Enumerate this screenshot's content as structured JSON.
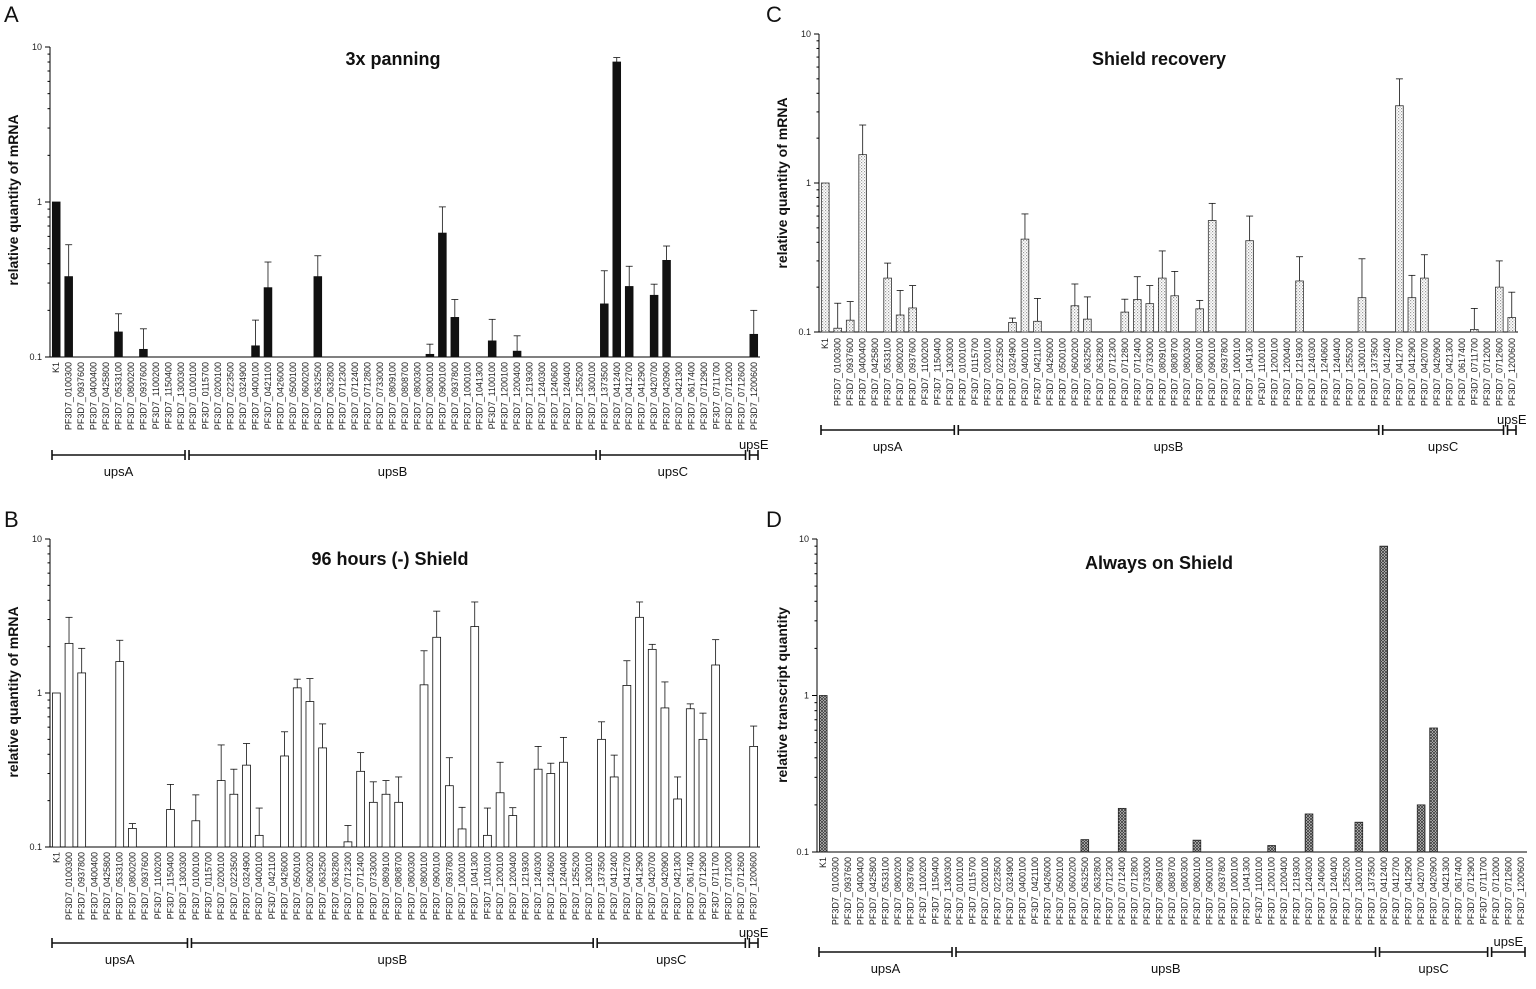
{
  "patterns": {
    "A": "solid-black",
    "B": "white",
    "C": "light-dots",
    "D": "dense-crosshatch"
  },
  "chart_data": [
    {
      "panel": "A",
      "type": "bar",
      "title": "3x panning",
      "ylabel": "relative quantity of mRNA",
      "xlabel": "",
      "yscale": "log",
      "ylim": [
        0.1,
        10
      ],
      "ytick_labels": [
        "0.1",
        "1",
        "10"
      ],
      "grid": false,
      "categories": [
        "K1",
        "PF3D7_0100300",
        "PF3D7_0937600",
        "PF3D7_0400400",
        "PF3D7_0425800",
        "PF3D7_0533100",
        "PF3D7_0800200",
        "PF3D7_0937600",
        "PF3D7_1100200",
        "PF3D7_1150400",
        "PF3D7_1300300",
        "PF3D7_0100100",
        "PF3D7_0115700",
        "PF3D7_0200100",
        "PF3D7_0223500",
        "PF3D7_0324900",
        "PF3D7_0400100",
        "PF3D7_0421100",
        "PF3D7_0426000",
        "PF3D7_0500100",
        "PF3D7_0600200",
        "PF3D7_0632500",
        "PF3D7_0632800",
        "PF3D7_0712300",
        "PF3D7_0712400",
        "PF3D7_0712800",
        "PF3D7_0733000",
        "PF3D7_0809100",
        "PF3D7_0808700",
        "PF3D7_0800300",
        "PF3D7_0800100",
        "PF3D7_0900100",
        "PF3D7_0937800",
        "PF3D7_1000100",
        "PF3D7_1041300",
        "PF3D7_1100100",
        "PF3D7_1200100",
        "PF3D7_1200400",
        "PF3D7_1219300",
        "PF3D7_1240300",
        "PF3D7_1240600",
        "PF3D7_1240400",
        "PF3D7_1255200",
        "PF3D7_1300100",
        "PF3D7_1373500",
        "PF3D7_0412400",
        "PF3D7_0412700",
        "PF3D7_0412900",
        "PF3D7_0420700",
        "PF3D7_0420900",
        "PF3D7_0421300",
        "PF3D7_0617400",
        "PF3D7_0712900",
        "PF3D7_0711700",
        "PF3D7_0712000",
        "PF3D7_0712600",
        "PF3D7_1200600"
      ],
      "values": [
        1.0,
        0.33,
        0,
        0,
        0,
        0.145,
        0,
        0.112,
        0,
        0,
        0,
        0,
        0,
        0,
        0,
        0,
        0.118,
        0.28,
        0,
        0,
        0,
        0.33,
        0,
        0,
        0,
        0,
        0,
        0,
        0,
        0,
        0.104,
        0.63,
        0.18,
        0,
        0,
        0.127,
        0,
        0.109,
        0,
        0,
        0,
        0,
        0,
        0,
        0.22,
        8.0,
        0.285,
        0,
        0.25,
        0.42,
        0,
        0,
        0,
        0,
        0,
        0,
        0.14
      ],
      "errors": [
        0,
        0.2,
        0,
        0,
        0,
        0.045,
        0,
        0.04,
        0,
        0,
        0,
        0,
        0,
        0,
        0,
        0,
        0.055,
        0.13,
        0,
        0,
        0,
        0.12,
        0,
        0,
        0,
        0,
        0,
        0,
        0,
        0,
        0.017,
        0.3,
        0.055,
        0,
        0,
        0.048,
        0,
        0.028,
        0,
        0,
        0,
        0,
        0,
        0,
        0.14,
        0.55,
        0.1,
        0,
        0.045,
        0.1,
        0,
        0,
        0,
        0,
        0,
        0,
        0.06
      ],
      "groups": [
        {
          "label": "upsA",
          "start": 0,
          "end": 10
        },
        {
          "label": "upsB",
          "start": 11,
          "end": 43
        },
        {
          "label": "upsC",
          "start": 44,
          "end": 55
        },
        {
          "label": "upsE",
          "start": 56,
          "end": 56
        }
      ]
    },
    {
      "panel": "B",
      "type": "bar",
      "title": "96 hours (-) Shield",
      "ylabel": "relative quantity of mRNA",
      "xlabel": "",
      "yscale": "log",
      "ylim": [
        0.1,
        10
      ],
      "ytick_labels": [
        "0.1",
        "1",
        "10"
      ],
      "grid": false,
      "categories": [
        "K1",
        "PF3D7_0100300",
        "PF3D7_0937800",
        "PF3D7_0400400",
        "PF3D7_0425800",
        "PF3D7_0533100",
        "PF3D7_0800200",
        "PF3D7_0937600",
        "PF3D7_1100200",
        "PF3D7_1150400",
        "PF3D7_1300300",
        "PF3D7_0100100",
        "PF3D7_0115700",
        "PF3D7_0200100",
        "PF3D7_0223500",
        "PF3D7_0324900",
        "PF3D7_0400100",
        "PF3D7_0421100",
        "PF3D7_0426000",
        "PF3D7_0500100",
        "PF3D7_0600200",
        "PF3D7_0632500",
        "PF3D7_0632800",
        "PF3D7_0712300",
        "PF3D7_0712400",
        "PF3D7_0733000",
        "PF3D7_0809100",
        "PF3D7_0808700",
        "PF3D7_0800300",
        "PF3D7_0800100",
        "PF3D7_0900100",
        "PF3D7_0937800",
        "PF3D7_1000100",
        "PF3D7_1041300",
        "PF3D7_1100100",
        "PF3D7_1200100",
        "PF3D7_1200400",
        "PF3D7_1219300",
        "PF3D7_1240300",
        "PF3D7_1240600",
        "PF3D7_1240400",
        "PF3D7_1255200",
        "PF3D7_1300100",
        "PF3D7_1373500",
        "PF3D7_0412400",
        "PF3D7_0412700",
        "PF3D7_0412900",
        "PF3D7_0420700",
        "PF3D7_0420900",
        "PF3D7_0421300",
        "PF3D7_0617400",
        "PF3D7_0712900",
        "PF3D7_0711700",
        "PF3D7_0712000",
        "PF3D7_0712600",
        "PF3D7_1200600"
      ],
      "values": [
        1.0,
        2.1,
        1.35,
        0,
        0,
        1.6,
        0.132,
        0,
        0,
        0.175,
        0,
        0.148,
        0,
        0.27,
        0.22,
        0.34,
        0.119,
        0,
        0.39,
        1.08,
        0.88,
        0.44,
        0,
        0.108,
        0.31,
        0.195,
        0.22,
        0.195,
        0,
        1.13,
        2.3,
        0.25,
        0.131,
        2.7,
        0.119,
        0.225,
        0.16,
        0,
        0.32,
        0.3,
        0.355,
        0,
        0,
        0.5,
        0.285,
        1.12,
        3.1,
        1.92,
        0.8,
        0.205,
        0.79,
        0.5,
        1.52,
        0,
        0,
        0.45
      ],
      "errors": [
        0,
        1.0,
        0.6,
        0,
        0,
        0.6,
        0.01,
        0,
        0,
        0.08,
        0,
        0.07,
        0,
        0.19,
        0.1,
        0.13,
        0.06,
        0,
        0.17,
        0.15,
        0.36,
        0.19,
        0,
        0.03,
        0.1,
        0.07,
        0.05,
        0.09,
        0,
        0.75,
        1.1,
        0.13,
        0.05,
        1.2,
        0.06,
        0.13,
        0.02,
        0,
        0.13,
        0.05,
        0.16,
        0,
        0,
        0.15,
        0.11,
        0.5,
        0.8,
        0.15,
        0.38,
        0.08,
        0.06,
        0.24,
        0.7,
        0,
        0,
        0.16
      ],
      "groups": [
        {
          "label": "upsA",
          "start": 0,
          "end": 10
        },
        {
          "label": "upsB",
          "start": 11,
          "end": 42
        },
        {
          "label": "upsC",
          "start": 43,
          "end": 54
        },
        {
          "label": "upsE",
          "start": 55,
          "end": 55
        }
      ]
    },
    {
      "panel": "C",
      "type": "bar",
      "title": "Shield recovery",
      "ylabel": "relative quantity of mRNA",
      "xlabel": "",
      "yscale": "log",
      "ylim": [
        0.1,
        10
      ],
      "ytick_labels": [
        "0.1",
        "1",
        "10"
      ],
      "grid": false,
      "categories": [
        "K1",
        "PF3D7_0100300",
        "PF3D7_0937600",
        "PF3D7_0400400",
        "PF3D7_0425800",
        "PF3D7_0533100",
        "PF3D7_0800200",
        "PF3D7_0937600",
        "PF3D7_1100200",
        "PF3D7_1150400",
        "PF3D7_1300300",
        "PF3D7_0100100",
        "PF3D7_0115700",
        "PF3D7_0200100",
        "PF3D7_0223500",
        "PF3D7_0324900",
        "PF3D7_0400100",
        "PF3D7_0421100",
        "PF3D7_0426000",
        "PF3D7_0500100",
        "PF3D7_0600200",
        "PF3D7_0632500",
        "PF3D7_0632800",
        "PF3D7_0712300",
        "PF3D7_0712800",
        "PF3D7_0712400",
        "PF3D7_0733000",
        "PF3D7_0809100",
        "PF3D7_0808700",
        "PF3D7_0800300",
        "PF3D7_0800100",
        "PF3D7_0900100",
        "PF3D7_0937800",
        "PF3D7_1000100",
        "PF3D7_1041300",
        "PF3D7_1100100",
        "PF3D7_1200100",
        "PF3D7_1200400",
        "PF3D7_1219300",
        "PF3D7_1240300",
        "PF3D7_1240600",
        "PF3D7_1240400",
        "PF3D7_1255200",
        "PF3D7_1300100",
        "PF3D7_1373500",
        "PF3D7_0412400",
        "PF3D7_0412700",
        "PF3D7_0412900",
        "PF3D7_0420700",
        "PF3D7_0420900",
        "PF3D7_0421300",
        "PF3D7_0617400",
        "PF3D7_0711700",
        "PF3D7_0712000",
        "PF3D7_0712600",
        "PF3D7_1200600"
      ],
      "values": [
        1.0,
        0.106,
        0.12,
        1.55,
        0,
        0.23,
        0.13,
        0.145,
        0,
        0,
        0,
        0,
        0,
        0,
        0,
        0.116,
        0.42,
        0.118,
        0,
        0,
        0.15,
        0.122,
        0,
        0,
        0.136,
        0.165,
        0.155,
        0.23,
        0.175,
        0,
        0.143,
        0.56,
        0,
        0,
        0.41,
        0,
        0,
        0,
        0.22,
        0,
        0,
        0,
        0,
        0.17,
        0,
        0,
        3.3,
        0.17,
        0.23,
        0,
        0,
        0,
        0.104,
        0,
        0.2,
        0.125
      ],
      "errors": [
        0,
        0.05,
        0.04,
        0.9,
        0,
        0.06,
        0.06,
        0.06,
        0,
        0,
        0,
        0,
        0,
        0,
        0,
        0.008,
        0.2,
        0.05,
        0,
        0,
        0.06,
        0.05,
        0,
        0,
        0.03,
        0.07,
        0.05,
        0.12,
        0.08,
        0,
        0.02,
        0.17,
        0,
        0,
        0.19,
        0,
        0,
        0,
        0.1,
        0,
        0,
        0,
        0,
        0.14,
        0,
        0,
        1.7,
        0.07,
        0.1,
        0,
        0,
        0,
        0.04,
        0,
        0.1,
        0.06
      ],
      "groups": [
        {
          "label": "upsA",
          "start": 0,
          "end": 10
        },
        {
          "label": "upsB",
          "start": 11,
          "end": 44
        },
        {
          "label": "upsC",
          "start": 45,
          "end": 54
        },
        {
          "label": "upsE",
          "start": 55,
          "end": 55
        }
      ]
    },
    {
      "panel": "D",
      "type": "bar",
      "title": "Always on Shield",
      "ylabel": "relative transcript quantity",
      "xlabel": "",
      "yscale": "log",
      "ylim": [
        0.1,
        10
      ],
      "ytick_labels": [
        "0.1",
        "1",
        "10"
      ],
      "grid": false,
      "categories": [
        "K1",
        "PF3D7_0100300",
        "PF3D7_0937600",
        "PF3D7_0400400",
        "PF3D7_0425800",
        "PF3D7_0533100",
        "PF3D7_0800200",
        "PF3D7_0937600",
        "PF3D7_1100200",
        "PF3D7_1150400",
        "PF3D7_1300300",
        "PF3D7_0100100",
        "PF3D7_0115700",
        "PF3D7_0200100",
        "PF3D7_0223500",
        "PF3D7_0324900",
        "PF3D7_0400100",
        "PF3D7_0421100",
        "PF3D7_0426000",
        "PF3D7_0500100",
        "PF3D7_0600200",
        "PF3D7_0632500",
        "PF3D7_0632800",
        "PF3D7_0712300",
        "PF3D7_0712400",
        "PF3D7_0712800",
        "PF3D7_0733000",
        "PF3D7_0809100",
        "PF3D7_0808700",
        "PF3D7_0800300",
        "PF3D7_0800100",
        "PF3D7_0900100",
        "PF3D7_0937800",
        "PF3D7_1000100",
        "PF3D7_1041300",
        "PF3D7_1100100",
        "PF3D7_1200100",
        "PF3D7_1200400",
        "PF3D7_1219300",
        "PF3D7_1240300",
        "PF3D7_1240600",
        "PF3D7_1240400",
        "PF3D7_1255200",
        "PF3D7_1300100",
        "PF3D7_1373500",
        "PF3D7_0412400",
        "PF3D7_0412700",
        "PF3D7_0412900",
        "PF3D7_0420700",
        "PF3D7_0420900",
        "PF3D7_0421300",
        "PF3D7_0617400",
        "PF3D7_0712900",
        "PF3D7_0711700",
        "PF3D7_0712000",
        "PF3D7_0712600",
        "PF3D7_1200600"
      ],
      "values": [
        1.0,
        0,
        0,
        0,
        0,
        0,
        0,
        0,
        0,
        0,
        0,
        0,
        0,
        0,
        0,
        0,
        0,
        0,
        0,
        0,
        0,
        0.12,
        0,
        0,
        0.19,
        0,
        0,
        0,
        0,
        0,
        0.119,
        0,
        0,
        0,
        0,
        0,
        0.11,
        0,
        0,
        0.175,
        0,
        0,
        0,
        0.155,
        0,
        9.0,
        0,
        0,
        0.2,
        0.62,
        0,
        0,
        0,
        0,
        0,
        0,
        0
      ],
      "errors": [
        0,
        0,
        0,
        0,
        0,
        0,
        0,
        0,
        0,
        0,
        0,
        0,
        0,
        0,
        0,
        0,
        0,
        0,
        0,
        0,
        0,
        0,
        0,
        0,
        0,
        0,
        0,
        0,
        0,
        0,
        0,
        0,
        0,
        0,
        0,
        0,
        0,
        0,
        0,
        0,
        0,
        0,
        0,
        0,
        0,
        0,
        0,
        0,
        0,
        0,
        0,
        0,
        0,
        0,
        0,
        0,
        0
      ],
      "groups": [
        {
          "label": "upsA",
          "start": 0,
          "end": 10
        },
        {
          "label": "upsB",
          "start": 11,
          "end": 44
        },
        {
          "label": "upsC",
          "start": 45,
          "end": 53
        },
        {
          "label": "upsE",
          "start": 54,
          "end": 56
        }
      ]
    }
  ]
}
